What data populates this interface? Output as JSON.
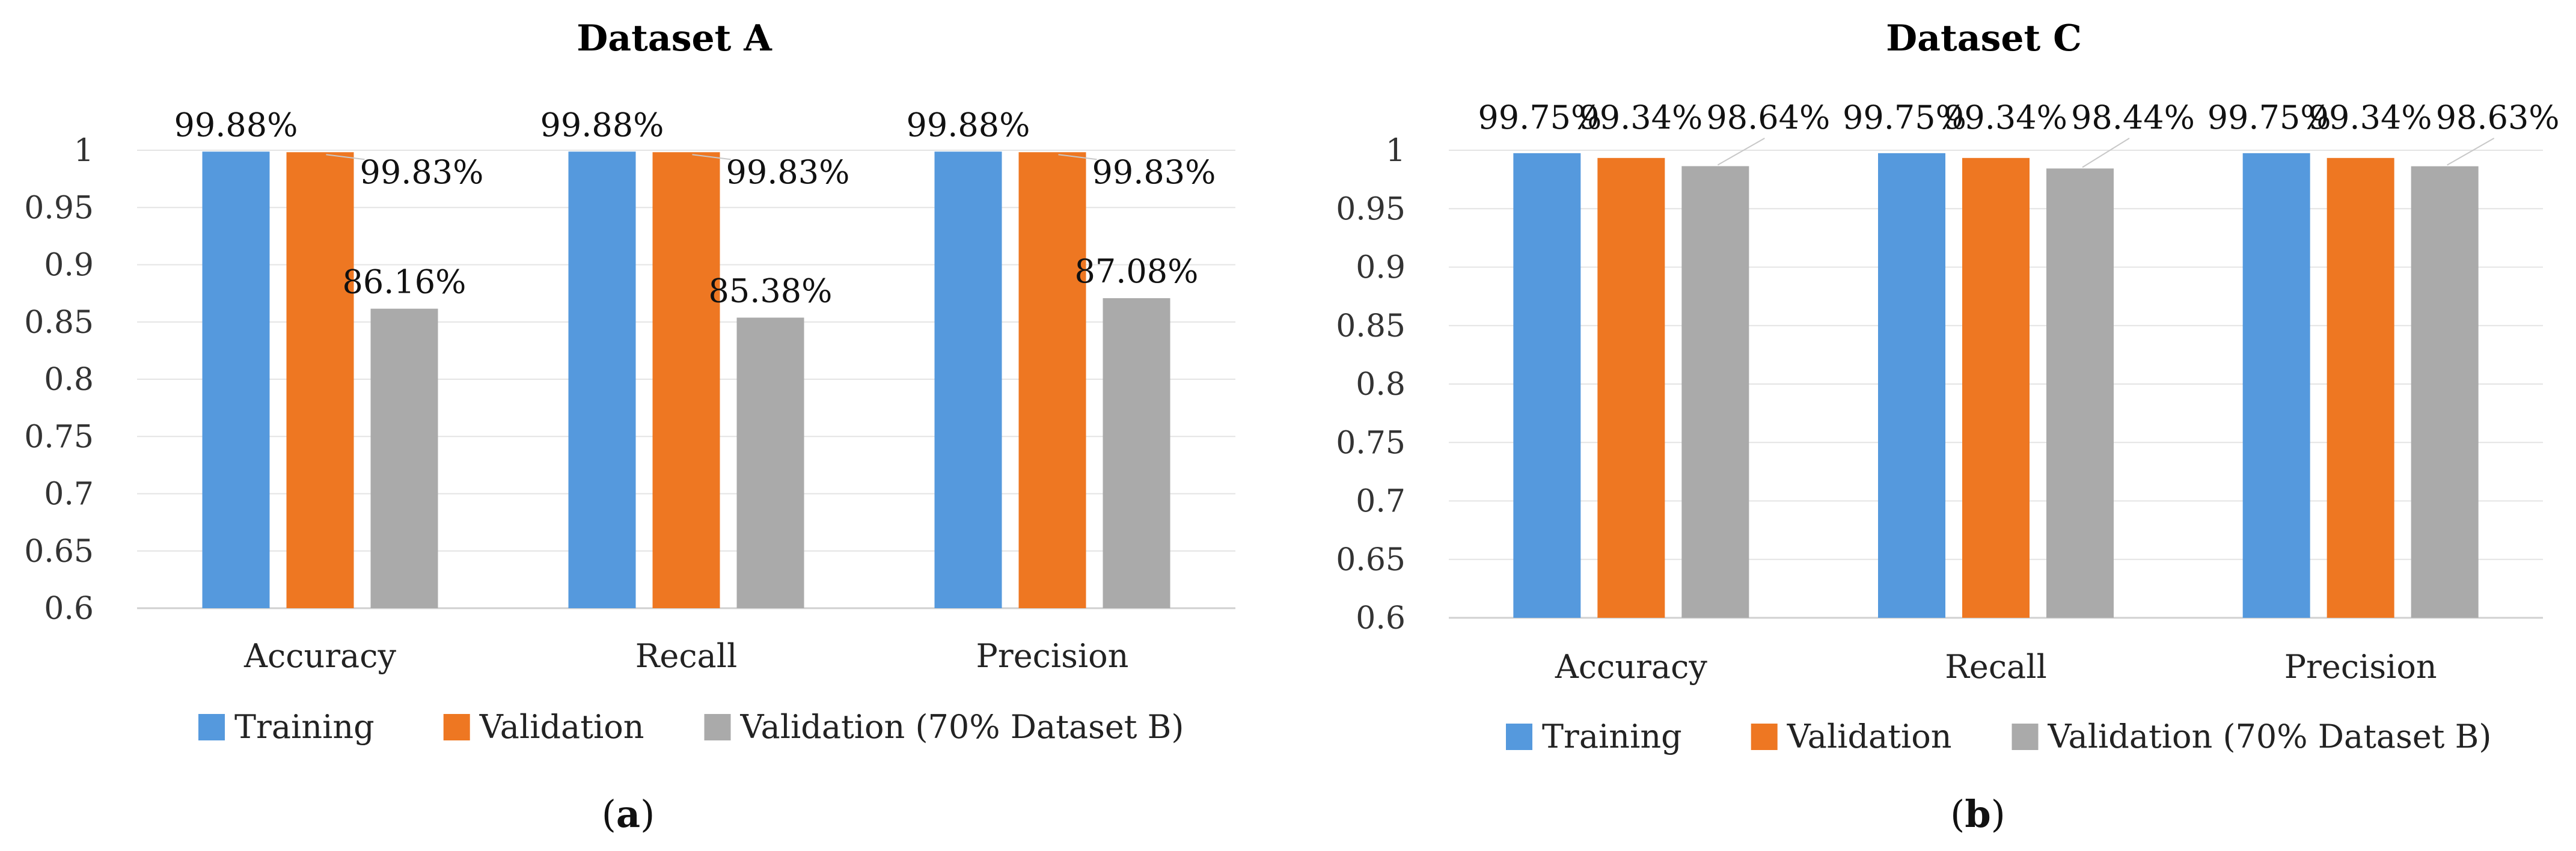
{
  "chart_data": [
    {
      "type": "bar",
      "title": "Dataset A",
      "panel_label": [
        "(",
        "a",
        ")"
      ],
      "categories": [
        "Accuracy",
        "Recall",
        "Precision"
      ],
      "series": [
        {
          "name": "Training",
          "color": "#5599DD",
          "values": [
            0.9988,
            0.9988,
            0.9988
          ],
          "labels": [
            "99.88%",
            "99.88%",
            "99.88%"
          ]
        },
        {
          "name": "Validation",
          "color": "#EE7722",
          "values": [
            0.9983,
            0.9983,
            0.9983
          ],
          "labels": [
            "99.83%",
            "99.83%",
            "99.83%"
          ]
        },
        {
          "name": "Validation (70% Dataset B)",
          "color": "#AAAAAA",
          "values": [
            0.8616,
            0.8538,
            0.8708
          ],
          "labels": [
            "86.16%",
            "85.38%",
            "87.08%"
          ]
        }
      ],
      "yticks": [
        "0.6",
        "0.65",
        "0.7",
        "0.75",
        "0.8",
        "0.85",
        "0.9",
        "0.95",
        "1"
      ],
      "ylim": [
        0.6,
        1.0
      ],
      "xlabel": "",
      "ylabel": "",
      "grid": true,
      "legend": "bottom"
    },
    {
      "type": "bar",
      "title": "Dataset C",
      "panel_label": [
        "(",
        "b",
        ")"
      ],
      "categories": [
        "Accuracy",
        "Recall",
        "Precision"
      ],
      "series": [
        {
          "name": "Training",
          "color": "#5599DD",
          "values": [
            0.9975,
            0.9975,
            0.9975
          ],
          "labels": [
            "99.75%",
            "99.75%",
            "99.75%"
          ]
        },
        {
          "name": "Validation",
          "color": "#EE7722",
          "values": [
            0.9934,
            0.9934,
            0.9934
          ],
          "labels": [
            "99.34%",
            "99.34%",
            "99.34%"
          ]
        },
        {
          "name": "Validation (70% Dataset B)",
          "color": "#AAAAAA",
          "values": [
            0.9864,
            0.9844,
            0.9863
          ],
          "labels": [
            "98.64%",
            "98.44%",
            "98.63%"
          ]
        }
      ],
      "yticks": [
        "0.6",
        "0.65",
        "0.7",
        "0.75",
        "0.8",
        "0.85",
        "0.9",
        "0.95",
        "1"
      ],
      "ylim": [
        0.6,
        1.0
      ],
      "xlabel": "",
      "ylabel": "",
      "grid": true,
      "legend": "bottom"
    }
  ]
}
